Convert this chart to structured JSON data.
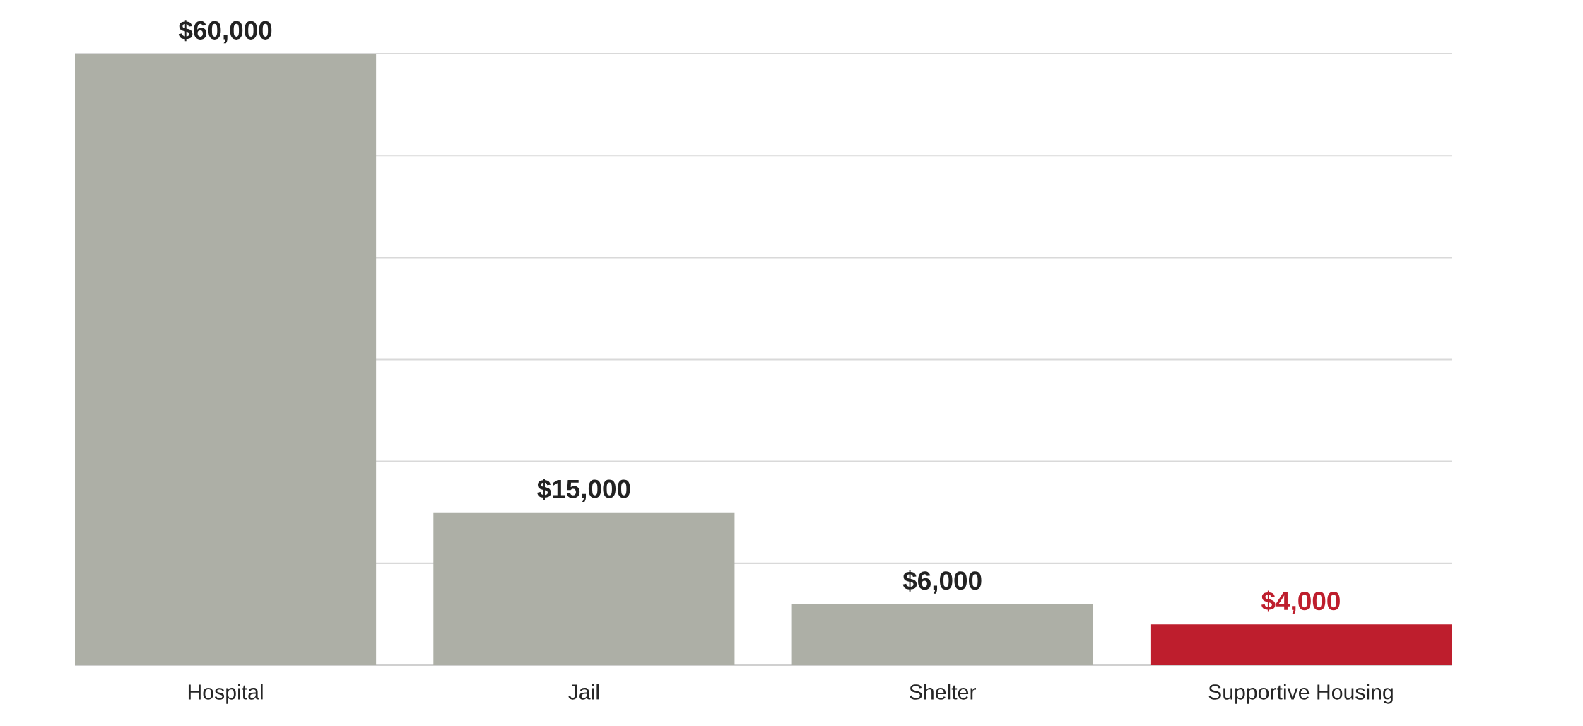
{
  "chart_data": {
    "type": "bar",
    "categories": [
      "Hospital",
      "Jail",
      "Shelter",
      "Supportive Housing"
    ],
    "values": [
      60000,
      15000,
      6000,
      4000
    ],
    "colors": [
      "#adafa6",
      "#adafa6",
      "#adafa6",
      "#be1e2d"
    ],
    "value_labels": [
      "$60,000",
      "$15,000",
      "$6,000",
      "$4,000"
    ],
    "ylim": [
      0,
      60000
    ],
    "yticks": [
      {
        "value": 0,
        "label": null
      },
      {
        "value": 10000,
        "label": null
      },
      {
        "value": 20000,
        "label": null
      },
      {
        "value": 30000,
        "label": null
      },
      {
        "value": 40000,
        "label": null
      },
      {
        "value": 50000,
        "label": null
      },
      {
        "value": 60000,
        "label": null
      }
    ],
    "grid": "y",
    "tick_labels": "x"
  }
}
